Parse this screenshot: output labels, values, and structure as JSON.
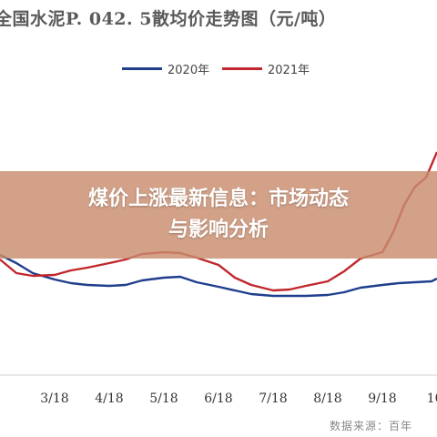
{
  "chart_data": {
    "type": "line",
    "title": "全国水泥P. 042. 5散均价走势图（元/吨）",
    "xlabel": "",
    "ylabel": "",
    "x_ticks": [
      "3/18",
      "4/18",
      "5/18",
      "6/18",
      "7/18",
      "8/18",
      "9/18",
      "10/"
    ],
    "xlim": [
      2.0,
      10.0
    ],
    "ylim": [
      300,
      600
    ],
    "legend_position": "top-center",
    "grid": false,
    "series": [
      {
        "name": "2020年",
        "color": "#1f3e8c",
        "x": [
          2.0,
          2.3,
          2.6,
          3.0,
          3.3,
          3.6,
          4.0,
          4.3,
          4.6,
          5.0,
          5.3,
          5.6,
          6.0,
          6.3,
          6.6,
          7.0,
          7.3,
          7.6,
          8.0,
          8.3,
          8.6,
          9.0,
          9.3,
          9.6,
          9.9,
          10.0
        ],
        "y": [
          445,
          436,
          425,
          418,
          414,
          412,
          411,
          412,
          417,
          420,
          421,
          415,
          410,
          406,
          402,
          400,
          400,
          400,
          401,
          404,
          409,
          412,
          414,
          415,
          416,
          419
        ]
      },
      {
        "name": "2021年",
        "color": "#c0282d",
        "x": [
          2.0,
          2.3,
          2.6,
          3.0,
          3.3,
          3.6,
          4.0,
          4.3,
          4.6,
          5.0,
          5.3,
          5.6,
          6.0,
          6.3,
          6.6,
          7.0,
          7.3,
          7.6,
          8.0,
          8.3,
          8.6,
          9.0,
          9.2,
          9.4,
          9.6,
          9.8,
          10.0
        ],
        "y": [
          440,
          425,
          422,
          423,
          428,
          431,
          436,
          440,
          446,
          448,
          447,
          442,
          434,
          420,
          412,
          406,
          407,
          411,
          416,
          427,
          441,
          448,
          470,
          500,
          520,
          530,
          558
        ]
      }
    ]
  },
  "legend": {
    "items": [
      {
        "label": "2020年",
        "color": "#1f3e8c"
      },
      {
        "label": "2021年",
        "color": "#c0282d"
      }
    ]
  },
  "banner": {
    "line1": "煤价上涨最新信息：市场动态",
    "line2": "与影响分析"
  },
  "source": "数据来源：百年"
}
